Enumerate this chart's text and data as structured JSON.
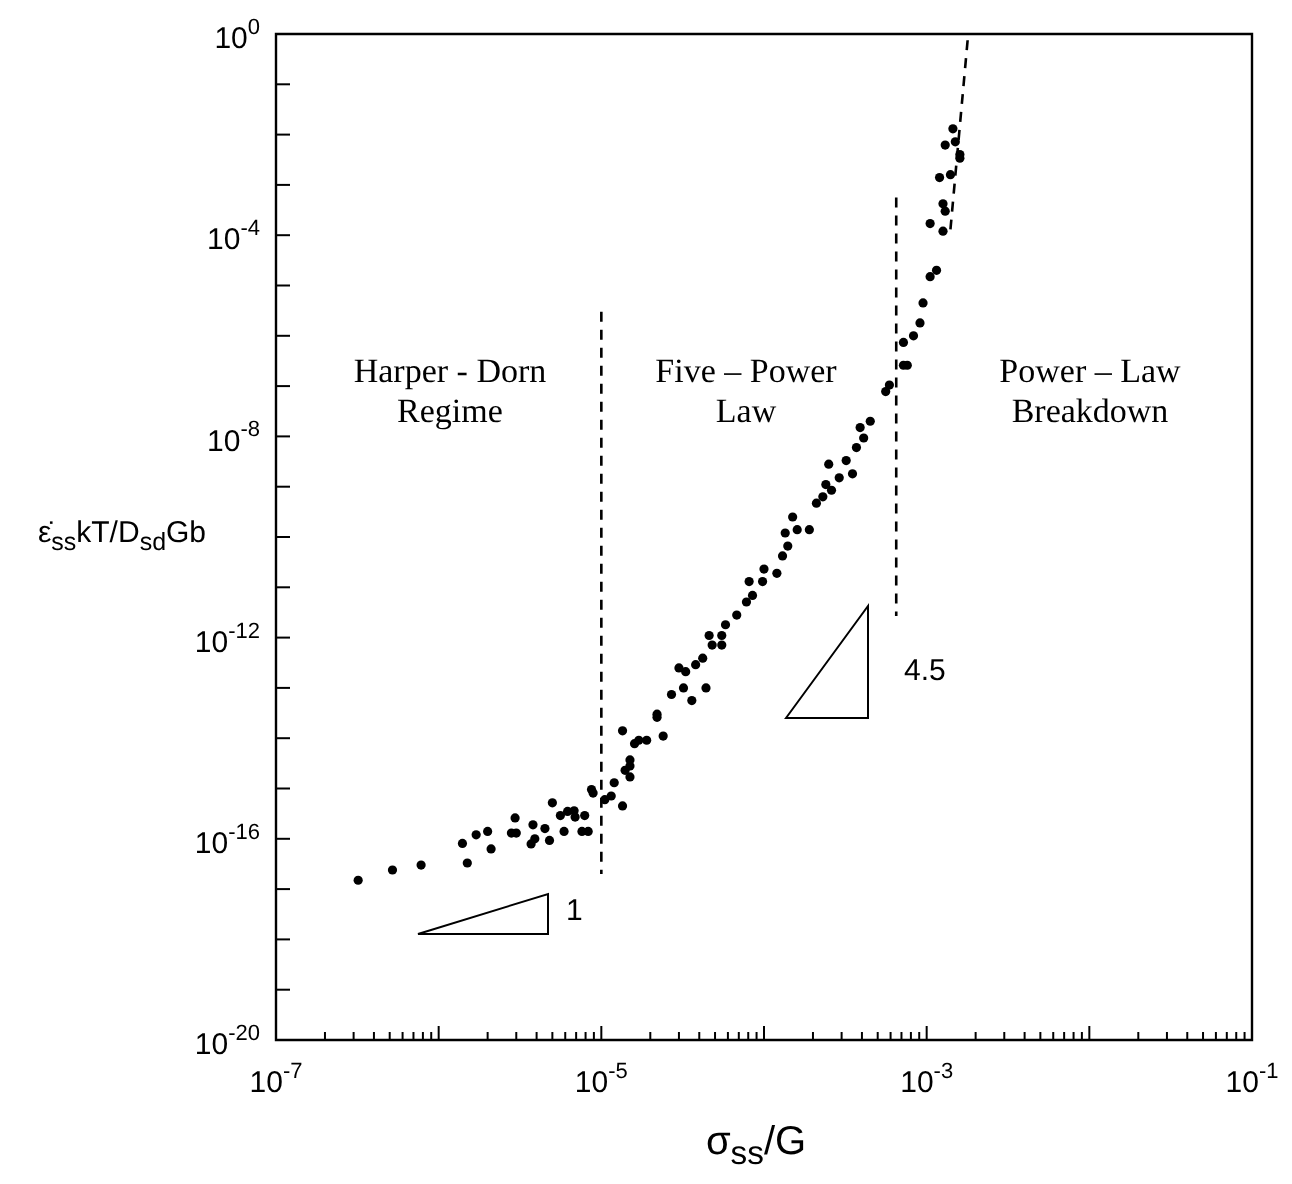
{
  "chart_data": {
    "type": "scatter",
    "log": "xy",
    "xlabel": "σ$_{ss}$/G",
    "ylabel": "ε̇$_{ss}$kT/D$_{sd}$Gb",
    "xlim": [
      1e-07,
      0.1
    ],
    "ylim": [
      1e-20,
      1
    ],
    "xticks": [
      {
        "value": 1e-07,
        "label": "10$^{-7}$"
      },
      {
        "value": 2e-07,
        "label": null
      },
      {
        "value": 3e-07,
        "label": null
      },
      {
        "value": 4e-07,
        "label": null
      },
      {
        "value": 5e-07,
        "label": null
      },
      {
        "value": 6e-07,
        "label": null
      },
      {
        "value": 7e-07,
        "label": null
      },
      {
        "value": 8e-07,
        "label": null
      },
      {
        "value": 9e-07,
        "label": null
      },
      {
        "value": 1e-06,
        "label": null
      },
      {
        "value": 2e-06,
        "label": null
      },
      {
        "value": 3e-06,
        "label": null
      },
      {
        "value": 4e-06,
        "label": null
      },
      {
        "value": 5e-06,
        "label": null
      },
      {
        "value": 6e-06,
        "label": null
      },
      {
        "value": 7e-06,
        "label": null
      },
      {
        "value": 8e-06,
        "label": null
      },
      {
        "value": 9e-06,
        "label": null
      },
      {
        "value": 1e-05,
        "label": "10$^{-5}$"
      },
      {
        "value": 2e-05,
        "label": null
      },
      {
        "value": 3e-05,
        "label": null
      },
      {
        "value": 4e-05,
        "label": null
      },
      {
        "value": 5e-05,
        "label": null
      },
      {
        "value": 6e-05,
        "label": null
      },
      {
        "value": 7e-05,
        "label": null
      },
      {
        "value": 8e-05,
        "label": null
      },
      {
        "value": 9e-05,
        "label": null
      },
      {
        "value": 0.0001,
        "label": null
      },
      {
        "value": 0.0002,
        "label": null
      },
      {
        "value": 0.0003,
        "label": null
      },
      {
        "value": 0.0004,
        "label": null
      },
      {
        "value": 0.0005,
        "label": null
      },
      {
        "value": 0.0006,
        "label": null
      },
      {
        "value": 0.0007,
        "label": null
      },
      {
        "value": 0.0008,
        "label": null
      },
      {
        "value": 0.0009,
        "label": null
      },
      {
        "value": 0.001,
        "label": "10$^{-3}$"
      },
      {
        "value": 0.002,
        "label": null
      },
      {
        "value": 0.003,
        "label": null
      },
      {
        "value": 0.004,
        "label": null
      },
      {
        "value": 0.005,
        "label": null
      },
      {
        "value": 0.006,
        "label": null
      },
      {
        "value": 0.007,
        "label": null
      },
      {
        "value": 0.008,
        "label": null
      },
      {
        "value": 0.009,
        "label": null
      },
      {
        "value": 0.01,
        "label": null
      },
      {
        "value": 0.02,
        "label": null
      },
      {
        "value": 0.03,
        "label": null
      },
      {
        "value": 0.04,
        "label": null
      },
      {
        "value": 0.05,
        "label": null
      },
      {
        "value": 0.06,
        "label": null
      },
      {
        "value": 0.07,
        "label": null
      },
      {
        "value": 0.08,
        "label": null
      },
      {
        "value": 0.09,
        "label": null
      },
      {
        "value": 0.1,
        "label": "10$^{-1}$"
      }
    ],
    "yticks": [
      {
        "value": 1e-20,
        "label": "10$^{-20}$"
      },
      {
        "value": 1e-19,
        "label": null
      },
      {
        "value": 1e-18,
        "label": null
      },
      {
        "value": 1e-17,
        "label": null
      },
      {
        "value": 1e-16,
        "label": "10$^{-16}$"
      },
      {
        "value": 1e-15,
        "label": null
      },
      {
        "value": 1e-14,
        "label": null
      },
      {
        "value": 1e-13,
        "label": null
      },
      {
        "value": 1e-12,
        "label": "10$^{-12}$"
      },
      {
        "value": 1e-11,
        "label": null
      },
      {
        "value": 1e-10,
        "label": null
      },
      {
        "value": 1e-09,
        "label": null
      },
      {
        "value": 1e-08,
        "label": "10$^{-8}$"
      },
      {
        "value": 1e-07,
        "label": null
      },
      {
        "value": 1e-06,
        "label": null
      },
      {
        "value": 1e-05,
        "label": null
      },
      {
        "value": 0.0001,
        "label": "10$^{-4}$"
      },
      {
        "value": 0.001,
        "label": null
      },
      {
        "value": 0.01,
        "label": null
      },
      {
        "value": 0.1,
        "label": null
      },
      {
        "value": 1,
        "label": "10$^{0}$"
      }
    ],
    "annotations": [
      "Harper - Dorn Regime",
      "Five – Power Law",
      "Power – Law Breakdown",
      "1",
      "4.5"
    ],
    "series": [
      {
        "type": "scatter",
        "color": "#000000",
        "marker": "circle",
        "x": [
          3.2e-07,
          5.2e-07,
          7.8e-07,
          1.5e-06,
          1.4e-06,
          1.7e-06,
          2e-06,
          2.1e-06,
          2.8e-06,
          3e-06,
          2.95e-06,
          3.7e-06,
          3.9e-06,
          3.8e-06,
          4.5e-06,
          4.8e-06,
          5e-06,
          5.6e-06,
          5.9e-06,
          6.2e-06,
          6.8e-06,
          6.9e-06,
          7.6e-06,
          8.3e-06,
          7.9e-06,
          8.9e-06,
          1.05e-05,
          1.15e-05,
          1.2e-05,
          1.35e-05,
          1.35e-05,
          1.5e-05,
          1.5e-05,
          1.6e-05,
          1.9e-05,
          2.4e-05,
          2.2e-05,
          8.7e-06,
          1.4e-05,
          1.5e-05,
          1.7e-05,
          2.2e-05,
          2.7e-05,
          3.2e-05,
          3.6e-05,
          3e-05,
          3.3e-05,
          3.8e-05,
          4.2e-05,
          4.4e-05,
          4.8e-05,
          4.6e-05,
          5.5e-05,
          5.8e-05,
          5.5e-05,
          6.8e-05,
          7.8e-05,
          8.5e-05,
          8.1e-05,
          9.8e-05,
          0.0001,
          0.00012,
          0.00013,
          0.00014,
          0.000135,
          0.00016,
          0.00015,
          0.00019,
          0.00021,
          0.00023,
          0.00024,
          0.00026,
          0.00029,
          0.00025,
          0.00032,
          0.00035,
          0.00037,
          0.00041,
          0.00045,
          0.00039,
          0.00056,
          0.00059,
          0.00072,
          0.00076,
          0.00072,
          0.00083,
          0.00091,
          0.00095,
          0.00105,
          0.00115,
          0.00105,
          0.00126,
          0.0013,
          0.00126,
          0.0012,
          0.0014,
          0.0013,
          0.00145,
          0.0015,
          0.0016,
          0.0016
        ],
        "values": [
          1.5e-17,
          2.4e-17,
          3e-17,
          3.3e-17,
          8.1e-17,
          1.2e-16,
          1.4e-16,
          6.3e-17,
          1.3e-16,
          1.3e-16,
          2.6e-16,
          7.9e-17,
          1e-16,
          1.9e-16,
          1.6e-16,
          9.3e-17,
          5.2e-16,
          2.9e-16,
          1.4e-16,
          3.5e-16,
          3.6e-16,
          2.7e-16,
          1.4e-16,
          1.4e-16,
          2.9e-16,
          8.1e-16,
          6e-16,
          7.1e-16,
          1.3e-15,
          4.5e-16,
          1.4e-14,
          1.7e-15,
          2.8e-15,
          7.8e-15,
          9.1e-15,
          1.1e-14,
          2.6e-14,
          9.5e-16,
          2.3e-15,
          3.7e-15,
          9.1e-15,
          3e-14,
          7.4e-14,
          1e-13,
          5.6e-14,
          2.5e-13,
          2.1e-13,
          2.9e-13,
          3.9e-13,
          1e-13,
          7.1e-13,
          1.1e-12,
          1.1e-12,
          1.8e-12,
          7.1e-13,
          2.8e-12,
          5.1e-12,
          6.9e-12,
          1.3e-11,
          1.3e-11,
          2.3e-11,
          1.9e-11,
          4.2e-11,
          6.6e-11,
          1.2e-10,
          1.4e-10,
          2.5e-10,
          1.4e-10,
          4.7e-10,
          6.3e-10,
          1.1e-09,
          8.5e-10,
          1.5e-09,
          2.8e-09,
          3.3e-09,
          1.8e-09,
          6e-09,
          9.3e-09,
          2e-08,
          1.5e-08,
          7.8e-08,
          1.05e-07,
          2.6e-07,
          2.6e-07,
          7.4e-07,
          1e-06,
          1.8e-06,
          4.5e-06,
          1.5e-05,
          2e-05,
          0.00017,
          0.00012,
          0.0003,
          0.00042,
          0.0014,
          0.0016,
          0.0062,
          0.013,
          0.0072,
          0.0034,
          0.004
        ]
      },
      {
        "type": "line",
        "color": "#000000",
        "line_style": "dashed",
        "marker": "none",
        "x": [
          1e-05,
          1e-05
        ],
        "values": [
          3e-06,
          2e-17
        ]
      },
      {
        "type": "line",
        "color": "#000000",
        "line_style": "dashed",
        "marker": "none",
        "x": [
          0.00065,
          0.00065
        ],
        "values": [
          0.00056,
          2.7e-12
        ]
      },
      {
        "type": "line",
        "color": "#000000",
        "line_style": "dashed",
        "marker": "none",
        "x": [
          0.0014,
          0.0018
        ],
        "values": [
          0.00013,
          1
        ]
      }
    ]
  }
}
